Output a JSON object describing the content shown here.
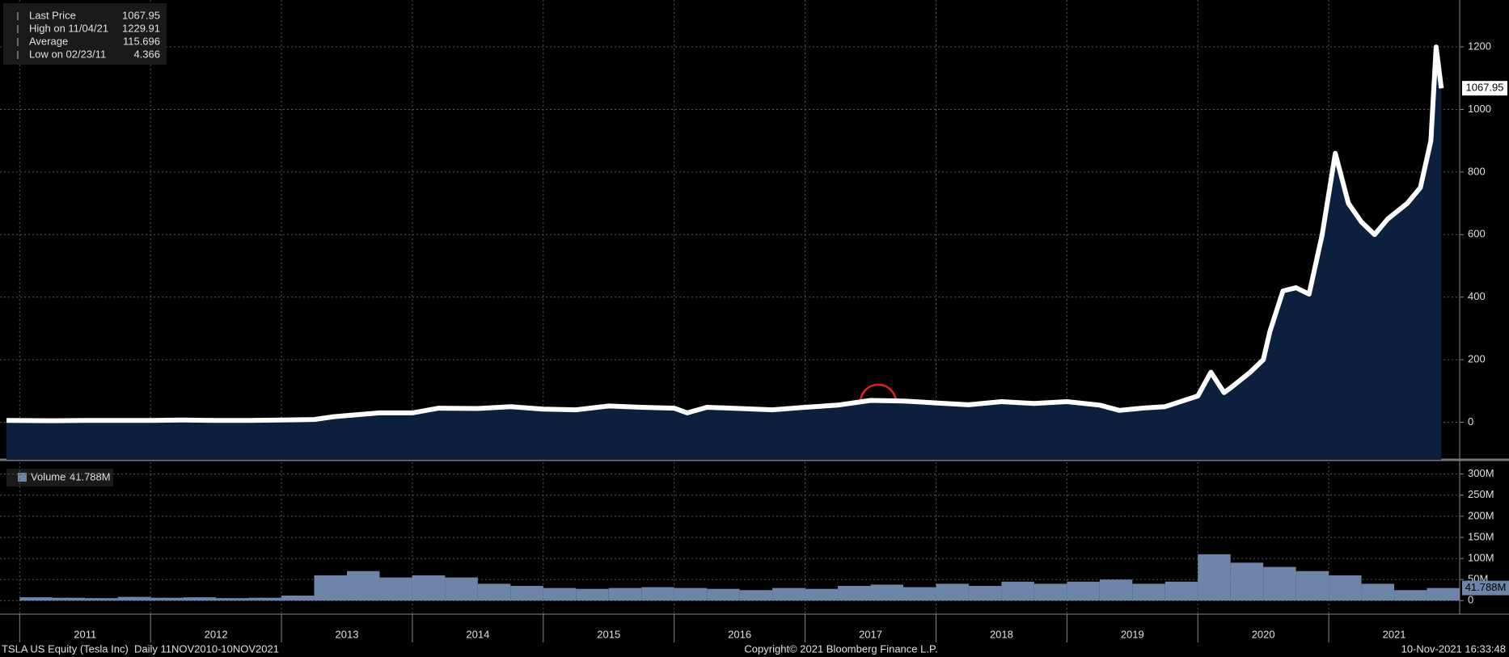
{
  "chart_data": [
    {
      "type": "area",
      "legend": [
        {
          "label": "Last Price",
          "value": 1067.95
        },
        {
          "label": "High on 11/04/21",
          "value": 1229.91
        },
        {
          "label": "Average",
          "value": 115.696
        },
        {
          "label": "Low on 02/23/11",
          "value": 4.366
        }
      ],
      "x": [
        2010.9,
        2011.25,
        2011.5,
        2011.75,
        2012.0,
        2012.25,
        2012.5,
        2012.75,
        2013.0,
        2013.25,
        2013.4,
        2013.6,
        2013.75,
        2014.0,
        2014.2,
        2014.5,
        2014.75,
        2015.0,
        2015.25,
        2015.5,
        2015.75,
        2016.0,
        2016.1,
        2016.25,
        2016.5,
        2016.75,
        2017.0,
        2017.25,
        2017.5,
        2017.75,
        2018.0,
        2018.25,
        2018.5,
        2018.75,
        2019.0,
        2019.25,
        2019.4,
        2019.6,
        2019.75,
        2020.0,
        2020.1,
        2020.2,
        2020.25,
        2020.4,
        2020.5,
        2020.55,
        2020.65,
        2020.75,
        2020.85,
        2020.95,
        2021.05,
        2021.15,
        2021.25,
        2021.35,
        2021.45,
        2021.6,
        2021.7,
        2021.78,
        2021.82,
        2021.86
      ],
      "values": [
        6,
        5,
        6,
        6,
        6,
        7,
        6,
        6,
        7,
        9,
        18,
        25,
        30,
        30,
        45,
        44,
        50,
        42,
        40,
        52,
        48,
        45,
        30,
        48,
        44,
        40,
        48,
        55,
        70,
        68,
        62,
        56,
        66,
        60,
        66,
        55,
        38,
        46,
        50,
        84,
        160,
        95,
        110,
        160,
        200,
        290,
        420,
        430,
        410,
        600,
        860,
        700,
        640,
        600,
        650,
        700,
        750,
        900,
        1200,
        1067.95
      ],
      "color": "#0c1f3c",
      "xlim": [
        2010.85,
        2022.0
      ],
      "xticks": [
        {
          "value": 2011,
          "label": "2011"
        },
        {
          "value": 2012,
          "label": "2012"
        },
        {
          "value": 2013,
          "label": "2013"
        },
        {
          "value": 2014,
          "label": "2014"
        },
        {
          "value": 2015,
          "label": "2015"
        },
        {
          "value": 2016,
          "label": "2016"
        },
        {
          "value": 2017,
          "label": "2017"
        },
        {
          "value": 2018,
          "label": "2018"
        },
        {
          "value": 2019,
          "label": "2019"
        },
        {
          "value": 2020,
          "label": "2020"
        },
        {
          "value": 2021,
          "label": "2021"
        }
      ],
      "ylim": [
        -120,
        1350
      ],
      "yticks": [
        0,
        200,
        400,
        600,
        800,
        1000,
        1200
      ],
      "grid": true
    },
    {
      "type": "bar",
      "legend": [
        {
          "label": "Volume",
          "value": "41.788M"
        }
      ],
      "x": [
        2011.0,
        2011.25,
        2011.5,
        2011.75,
        2012.0,
        2012.25,
        2012.5,
        2012.75,
        2013.0,
        2013.25,
        2013.5,
        2013.75,
        2014.0,
        2014.25,
        2014.5,
        2014.75,
        2015.0,
        2015.25,
        2015.5,
        2015.75,
        2016.0,
        2016.25,
        2016.5,
        2016.75,
        2017.0,
        2017.25,
        2017.5,
        2017.75,
        2018.0,
        2018.25,
        2018.5,
        2018.75,
        2019.0,
        2019.25,
        2019.5,
        2019.75,
        2020.0,
        2020.25,
        2020.5,
        2020.75,
        2021.0,
        2021.25,
        2021.5,
        2021.75
      ],
      "values": [
        8,
        7,
        6,
        9,
        7,
        8,
        6,
        7,
        12,
        60,
        70,
        55,
        60,
        55,
        40,
        35,
        30,
        28,
        30,
        32,
        30,
        28,
        25,
        30,
        28,
        35,
        38,
        32,
        40,
        35,
        45,
        40,
        45,
        50,
        40,
        45,
        110,
        90,
        80,
        70,
        60,
        40,
        25,
        30
      ],
      "color": "#6e84a8",
      "xlim": [
        2010.85,
        2022.0
      ],
      "ylim": [
        -32,
        328
      ],
      "yticks": [
        0,
        {
          "value": 50,
          "label": "50M"
        },
        {
          "value": 100,
          "label": "100M"
        },
        {
          "value": 150,
          "label": "150M"
        },
        {
          "value": 200,
          "label": "200M"
        },
        {
          "value": 250,
          "label": "250M"
        },
        {
          "value": 300,
          "label": "300M"
        }
      ],
      "grid": true
    }
  ],
  "footer": {
    "left": "TSLA US Equity (Tesla Inc)  Daily 11NOV2010-10NOV2021",
    "center": "Copyright© 2021 Bloomberg Finance L.P.",
    "right": "10-Nov-2021 16:33:48"
  }
}
